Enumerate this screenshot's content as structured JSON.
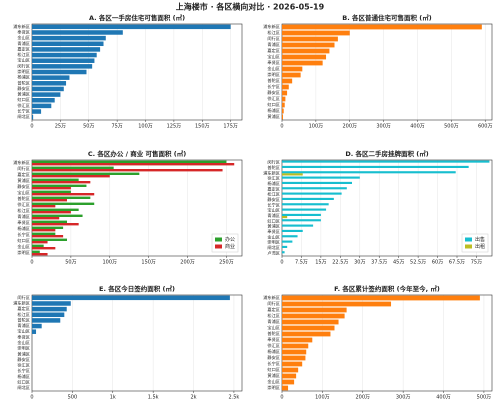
{
  "title": "上海楼市 · 各区横向对比 · 2026-05-19",
  "chart_data": [
    {
      "type": "barh",
      "title": "A. 各区一手房住宅可售面积 (㎡)",
      "grid": true,
      "color": "#1f77b4",
      "categories": [
        "浦东新区",
        "奉贤区",
        "金山区",
        "青浦区",
        "嘉定区",
        "松江区",
        "宝山区",
        "闵行区",
        "崇明区",
        "杨浦区",
        "普陀区",
        "静安区",
        "黄浦区",
        "虹口区",
        "徐汇区",
        "长宁区",
        "闸北区"
      ],
      "values": [
        1750000,
        800000,
        650000,
        630000,
        600000,
        570000,
        550000,
        530000,
        480000,
        330000,
        300000,
        280000,
        250000,
        200000,
        170000,
        80000,
        10000
      ],
      "xlim": [
        0,
        1850000
      ],
      "xticks": [
        0,
        {
          "value": 250000,
          "label": "25万"
        },
        {
          "value": 500000,
          "label": "50万"
        },
        {
          "value": 750000,
          "label": "75万"
        },
        {
          "value": 1000000,
          "label": "100万"
        },
        {
          "value": 1250000,
          "label": "125万"
        },
        {
          "value": 1500000,
          "label": "150万"
        },
        {
          "value": 1750000,
          "label": "175万"
        }
      ]
    },
    {
      "type": "barh",
      "title": "B. 各区普通住宅可售面积 (㎡)",
      "grid": true,
      "color": "#ff7f0e",
      "categories": [
        "浦东新区",
        "松江区",
        "闵行区",
        "青浦区",
        "嘉定区",
        "宝山区",
        "奉贤区",
        "金山区",
        "崇明区",
        "普陀区",
        "长宁区",
        "静安区",
        "徐汇区",
        "虹口区",
        "杨浦区",
        "黄浦区"
      ],
      "values": [
        5900000,
        2000000,
        1650000,
        1550000,
        1400000,
        1300000,
        1200000,
        600000,
        550000,
        300000,
        200000,
        150000,
        100000,
        80000,
        50000,
        30000
      ],
      "xlim": [
        0,
        6200000
      ],
      "xticks": [
        0,
        {
          "value": 1000000,
          "label": "100万"
        },
        {
          "value": 2000000,
          "label": "200万"
        },
        {
          "value": 3000000,
          "label": "300万"
        },
        {
          "value": 4000000,
          "label": "400万"
        },
        {
          "value": 5000000,
          "label": "500万"
        },
        {
          "value": 6000000,
          "label": "600万"
        }
      ]
    },
    {
      "type": "barh-grouped",
      "title": "C. 各区办公 / 商业 可售面积 (㎡)",
      "grid": true,
      "legend": "lower right",
      "categories": [
        "浦东新区",
        "闵行区",
        "嘉定区",
        "黄浦区",
        "静安区",
        "宝山区",
        "普陀区",
        "徐汇区",
        "松江区",
        "青浦区",
        "奉贤区",
        "杨浦区",
        "长宁区",
        "虹口区",
        "金山区",
        "崇明区"
      ],
      "series": [
        {
          "name": "办公",
          "color": "#2ca02c",
          "values": [
            2500000,
            1050000,
            1380000,
            600000,
            700000,
            500000,
            750000,
            800000,
            600000,
            650000,
            450000,
            400000,
            300000,
            450000,
            150000,
            100000
          ]
        },
        {
          "name": "商业",
          "color": "#d62728",
          "values": [
            2600000,
            2450000,
            1000000,
            750000,
            500000,
            800000,
            450000,
            300000,
            500000,
            350000,
            600000,
            300000,
            400000,
            200000,
            300000,
            200000
          ]
        }
      ],
      "xlim": [
        0,
        2700000
      ],
      "xticks": [
        0,
        {
          "value": 500000,
          "label": "50万"
        },
        {
          "value": 1000000,
          "label": "100万"
        },
        {
          "value": 1500000,
          "label": "150万"
        },
        {
          "value": 2000000,
          "label": "200万"
        },
        {
          "value": 2500000,
          "label": "250万"
        }
      ]
    },
    {
      "type": "barh-grouped",
      "title": "D. 各区二手房挂牌面积 (㎡)",
      "grid": true,
      "legend": "lower right",
      "categories": [
        "闵行区",
        "普陀区",
        "浦东新区",
        "徐汇区",
        "杨浦区",
        "嘉定区",
        "松江区",
        "静安区",
        "长宁区",
        "宝山区",
        "青浦区",
        "虹口区",
        "黄浦区",
        "奉贤区",
        "金山区",
        "崇明区",
        "闸北区",
        "卢湾区"
      ],
      "series": [
        {
          "name": "出售",
          "color": "#17becf",
          "values": [
            800000,
            720000,
            670000,
            300000,
            270000,
            250000,
            230000,
            200000,
            180000,
            170000,
            150000,
            150000,
            120000,
            80000,
            60000,
            40000,
            20000,
            10000
          ]
        },
        {
          "name": "出租",
          "color": "#bcbd22",
          "values": [
            0,
            0,
            80000,
            0,
            0,
            0,
            0,
            0,
            0,
            0,
            20000,
            0,
            0,
            0,
            0,
            0,
            0,
            0
          ]
        }
      ],
      "xlim": [
        0,
        810000
      ],
      "xticks": [
        0,
        {
          "value": 75000,
          "label": "7.5万"
        },
        {
          "value": 150000,
          "label": "15万"
        },
        {
          "value": 225000,
          "label": "22.5万"
        },
        {
          "value": 300000,
          "label": "30万"
        },
        {
          "value": 375000,
          "label": "37.5万"
        },
        {
          "value": 450000,
          "label": "45万"
        },
        {
          "value": 525000,
          "label": "52.5万"
        },
        {
          "value": 600000,
          "label": "60万"
        },
        {
          "value": 675000,
          "label": "67.5万"
        },
        {
          "value": 750000,
          "label": "75万"
        }
      ]
    },
    {
      "type": "barh",
      "title": "E. 各区今日签约面积 (㎡)",
      "grid": true,
      "color": "#1f77b4",
      "categories": [
        "闵行区",
        "浦东新区",
        "嘉定区",
        "松江区",
        "普陀区",
        "青浦区",
        "宝山区",
        "奉贤区",
        "金山区",
        "崇明区",
        "黄浦区",
        "静安区",
        "徐汇区",
        "长宁区",
        "杨浦区",
        "虹口区",
        "闸北区"
      ],
      "values": [
        2450,
        480,
        430,
        400,
        350,
        120,
        50,
        0,
        0,
        0,
        0,
        0,
        0,
        0,
        0,
        0,
        0
      ],
      "xlim": [
        0,
        2600
      ],
      "xticks": [
        0,
        500,
        {
          "value": 1000,
          "label": "1k"
        },
        {
          "value": 1500,
          "label": "1.5k"
        },
        {
          "value": 2000,
          "label": "2k"
        },
        {
          "value": 2500,
          "label": "2.5k"
        }
      ]
    },
    {
      "type": "barh",
      "title": "F. 各区累计签约面积 (今年至今, ㎡)",
      "grid": true,
      "color": "#ff7f0e",
      "categories": [
        "浦东新区",
        "闵行区",
        "嘉定区",
        "松江区",
        "青浦区",
        "宝山区",
        "普陀区",
        "奉贤区",
        "徐汇区",
        "杨浦区",
        "静安区",
        "长宁区",
        "虹口区",
        "黄浦区",
        "金山区",
        "崇明区"
      ],
      "values": [
        4900000,
        2700000,
        1600000,
        1550000,
        1400000,
        1300000,
        1200000,
        750000,
        650000,
        600000,
        580000,
        500000,
        400000,
        350000,
        300000,
        150000
      ],
      "xlim": [
        0,
        5200000
      ],
      "xticks": [
        0,
        {
          "value": 1000000,
          "label": "100万"
        },
        {
          "value": 2000000,
          "label": "200万"
        },
        {
          "value": 3000000,
          "label": "300万"
        },
        {
          "value": 4000000,
          "label": "400万"
        },
        {
          "value": 5000000,
          "label": "500万"
        }
      ]
    }
  ]
}
